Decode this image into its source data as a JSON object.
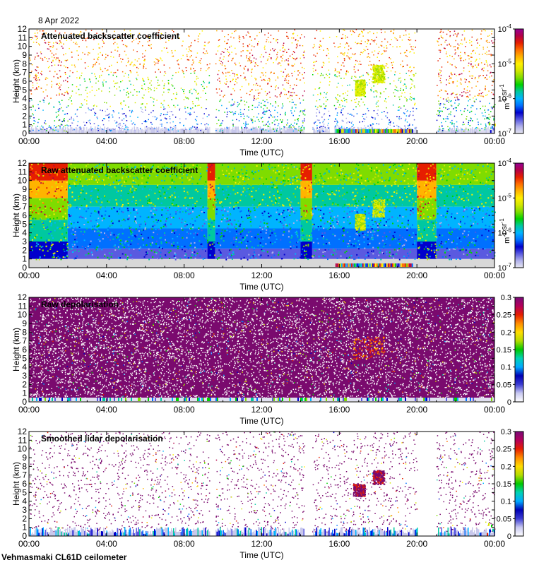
{
  "date": "8 Apr 2022",
  "footer": "Vehmasmaki CL61D ceilometer",
  "palette": {
    "rainbow": [
      "#e6e6f0",
      "#b0b0ea",
      "#5a5ae0",
      "#0000cc",
      "#0070ff",
      "#00b4ff",
      "#00c8a0",
      "#00d200",
      "#7fdc00",
      "#d2e600",
      "#fff000",
      "#ffb400",
      "#ff6e00",
      "#e61e00",
      "#b40046",
      "#960096"
    ],
    "cloud_gray": "#d8d8d8",
    "depol_purple": "#7a0a6e"
  },
  "chart_data": [
    {
      "type": "heatmap",
      "title": "Attenuated backscatter coefficient",
      "xlabel": "Time (UTC)",
      "ylabel": "Height (km)",
      "x_ticks": [
        "00:00",
        "04:00",
        "08:00",
        "12:00",
        "16:00",
        "20:00",
        "00:00"
      ],
      "x_range_hours": [
        0,
        24
      ],
      "y_ticks": [
        "0",
        "1",
        "2",
        "3",
        "4",
        "5",
        "6",
        "7",
        "8",
        "9",
        "10",
        "11",
        "12"
      ],
      "ylim": [
        0,
        12
      ],
      "colorbar": {
        "scale": "log",
        "ticks": [
          "10-7",
          "10-6",
          "10-5",
          "10-4"
        ],
        "exponents": [
          -7,
          -6,
          -5,
          -4
        ],
        "label": "m-1 sr-1",
        "range": [
          1e-07,
          0.0001
        ]
      },
      "gaps_hours": [
        [
          9.3,
          9.6
        ],
        [
          14.2,
          14.6
        ],
        [
          15.5,
          15.7
        ],
        [
          20.0,
          21.0
        ]
      ],
      "clouds": [
        {
          "t_start": 16.8,
          "t_end": 17.3,
          "z_bottom_km": 4.4,
          "z_top_km": 6.2
        },
        {
          "t_start": 17.7,
          "t_end": 18.3,
          "z_bottom_km": 5.9,
          "z_top_km": 7.9
        }
      ]
    },
    {
      "type": "heatmap",
      "title": "Raw attenuated backscatter coefficient",
      "xlabel": "Time (UTC)",
      "ylabel": "Height (km)",
      "x_ticks": [
        "00:00",
        "04:00",
        "08:00",
        "12:00",
        "16:00",
        "20:00",
        "00:00"
      ],
      "x_range_hours": [
        0,
        24
      ],
      "y_ticks": [
        "0",
        "1",
        "2",
        "3",
        "4",
        "5",
        "6",
        "7",
        "8",
        "9",
        "10",
        "11",
        "12"
      ],
      "ylim": [
        0,
        12
      ],
      "colorbar": {
        "scale": "log",
        "ticks": [
          "10-7",
          "10-6",
          "10-5",
          "10-4"
        ],
        "exponents": [
          -7,
          -6,
          -5,
          -4
        ],
        "label": "m-1 sr-1",
        "range": [
          1e-07,
          0.0001
        ]
      },
      "high_noise_periods_hours": [
        [
          0,
          2.0
        ],
        [
          9.2,
          9.6
        ],
        [
          14.0,
          14.6
        ],
        [
          20.0,
          21.0
        ]
      ],
      "clouds": [
        {
          "t_start": 16.8,
          "t_end": 17.3,
          "z_bottom_km": 4.4,
          "z_top_km": 6.2
        },
        {
          "t_start": 17.7,
          "t_end": 18.3,
          "z_bottom_km": 5.9,
          "z_top_km": 7.9
        }
      ]
    },
    {
      "type": "heatmap",
      "title": "Raw depolarisation",
      "xlabel": "Time (UTC)",
      "ylabel": "Height (km)",
      "x_ticks": [
        "00:00",
        "04:00",
        "08:00",
        "12:00",
        "16:00",
        "20:00",
        "00:00"
      ],
      "x_range_hours": [
        0,
        24
      ],
      "y_ticks": [
        "0",
        "1",
        "2",
        "3",
        "4",
        "5",
        "6",
        "7",
        "8",
        "9",
        "10",
        "11",
        "12"
      ],
      "ylim": [
        0,
        12
      ],
      "colorbar": {
        "scale": "linear",
        "ticks": [
          "0",
          "0.05",
          "0.1",
          "0.15",
          "0.2",
          "0.25",
          "0.3"
        ],
        "values": [
          0,
          0.05,
          0.1,
          0.15,
          0.2,
          0.25,
          0.3
        ],
        "range": [
          0,
          0.3
        ]
      }
    },
    {
      "type": "heatmap",
      "title": "Smoothed lidar depolarisation",
      "xlabel": "Time (UTC)",
      "ylabel": "Height (km)",
      "x_ticks": [
        "00:00",
        "04:00",
        "08:00",
        "12:00",
        "16:00",
        "20:00",
        "00:00"
      ],
      "x_range_hours": [
        0,
        24
      ],
      "y_ticks": [
        "0",
        "1",
        "2",
        "3",
        "4",
        "5",
        "6",
        "7",
        "8",
        "9",
        "10",
        "11",
        "12"
      ],
      "ylim": [
        0,
        12
      ],
      "colorbar": {
        "scale": "linear",
        "ticks": [
          "0",
          "0.05",
          "0.1",
          "0.15",
          "0.2",
          "0.25",
          "0.3"
        ],
        "values": [
          0,
          0.05,
          0.1,
          0.15,
          0.2,
          0.25,
          0.3
        ],
        "range": [
          0,
          0.3
        ]
      },
      "gaps_hours": [
        [
          9.3,
          9.6
        ],
        [
          14.2,
          14.6
        ],
        [
          20.0,
          21.0
        ]
      ],
      "clouds": [
        {
          "t_start": 16.7,
          "t_end": 17.3,
          "z_bottom_km": 4.6,
          "z_top_km": 6.0
        },
        {
          "t_start": 17.7,
          "t_end": 18.3,
          "z_bottom_km": 6.0,
          "z_top_km": 7.6
        }
      ]
    }
  ]
}
